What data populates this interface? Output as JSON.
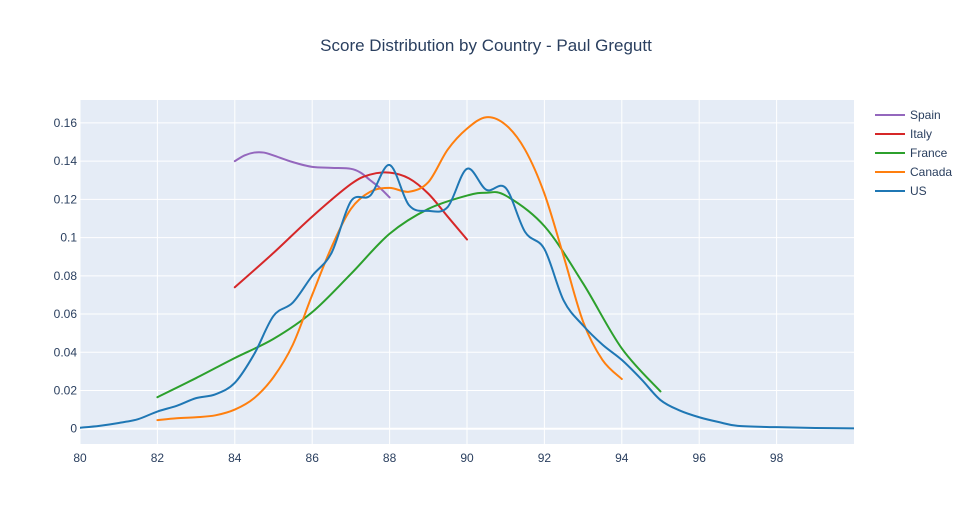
{
  "chart_data": {
    "type": "line",
    "title": "Score Distribution by Country - Paul Gregutt",
    "xlabel": "",
    "ylabel": "",
    "xlim": [
      80,
      100
    ],
    "ylim": [
      -0.008,
      0.172
    ],
    "x_ticks": [
      80,
      82,
      84,
      86,
      88,
      90,
      92,
      94,
      96,
      98
    ],
    "y_ticks": [
      0,
      0.02,
      0.04,
      0.06,
      0.08,
      0.1,
      0.12,
      0.14,
      0.16
    ],
    "grid": true,
    "legend_position": "top-right",
    "plot_bg": "#e5ecf6",
    "series": [
      {
        "name": "Spain",
        "color": "#9467bd",
        "x": [
          84,
          84.25,
          84.5,
          84.75,
          85,
          85.5,
          86,
          86.5,
          87,
          87.25,
          87.5,
          87.75,
          88
        ],
        "y": [
          0.14,
          0.143,
          0.1445,
          0.1445,
          0.143,
          0.1395,
          0.137,
          0.1365,
          0.136,
          0.134,
          0.13,
          0.126,
          0.121
        ]
      },
      {
        "name": "Italy",
        "color": "#d62728",
        "x": [
          84,
          85,
          86,
          87,
          87.5,
          88,
          88.5,
          89,
          89.5,
          90
        ],
        "y": [
          0.074,
          0.092,
          0.111,
          0.128,
          0.133,
          0.134,
          0.131,
          0.123,
          0.111,
          0.099
        ]
      },
      {
        "name": "France",
        "color": "#2ca02c",
        "x": [
          82,
          83,
          84,
          85,
          86,
          87,
          88,
          89,
          90,
          90.5,
          91,
          92,
          93,
          94,
          95
        ],
        "y": [
          0.0165,
          0.0265,
          0.037,
          0.047,
          0.061,
          0.081,
          0.102,
          0.115,
          0.122,
          0.1235,
          0.122,
          0.106,
          0.076,
          0.042,
          0.0195
        ]
      },
      {
        "name": "Canada",
        "color": "#ff7f0e",
        "x": [
          82,
          82.5,
          83,
          83.5,
          84,
          84.5,
          85,
          85.5,
          86,
          86.5,
          87,
          87.5,
          88,
          88.5,
          89,
          89.5,
          90,
          90.5,
          91,
          91.5,
          92,
          92.5,
          93,
          93.5,
          94
        ],
        "y": [
          0.0045,
          0.0055,
          0.006,
          0.007,
          0.01,
          0.016,
          0.027,
          0.044,
          0.07,
          0.095,
          0.115,
          0.124,
          0.126,
          0.124,
          0.129,
          0.146,
          0.157,
          0.163,
          0.159,
          0.146,
          0.123,
          0.09,
          0.056,
          0.036,
          0.026
        ]
      },
      {
        "name": "US",
        "color": "#1f77b4",
        "x": [
          80,
          80.5,
          81,
          81.5,
          82,
          82.5,
          83,
          83.5,
          84,
          84.5,
          85,
          85.5,
          86,
          86.5,
          87,
          87.5,
          88,
          88.5,
          89,
          89.5,
          90,
          90.5,
          91,
          91.5,
          92,
          92.5,
          93,
          93.5,
          94,
          94.5,
          95,
          95.5,
          96,
          96.5,
          97,
          98,
          99,
          100
        ],
        "y": [
          0.0005,
          0.0015,
          0.003,
          0.005,
          0.009,
          0.012,
          0.016,
          0.018,
          0.024,
          0.039,
          0.059,
          0.066,
          0.08,
          0.092,
          0.119,
          0.122,
          0.138,
          0.117,
          0.114,
          0.116,
          0.136,
          0.125,
          0.126,
          0.103,
          0.094,
          0.067,
          0.054,
          0.044,
          0.036,
          0.026,
          0.015,
          0.0095,
          0.006,
          0.0035,
          0.0015,
          0.0008,
          0.0004,
          0.0002
        ]
      }
    ]
  }
}
